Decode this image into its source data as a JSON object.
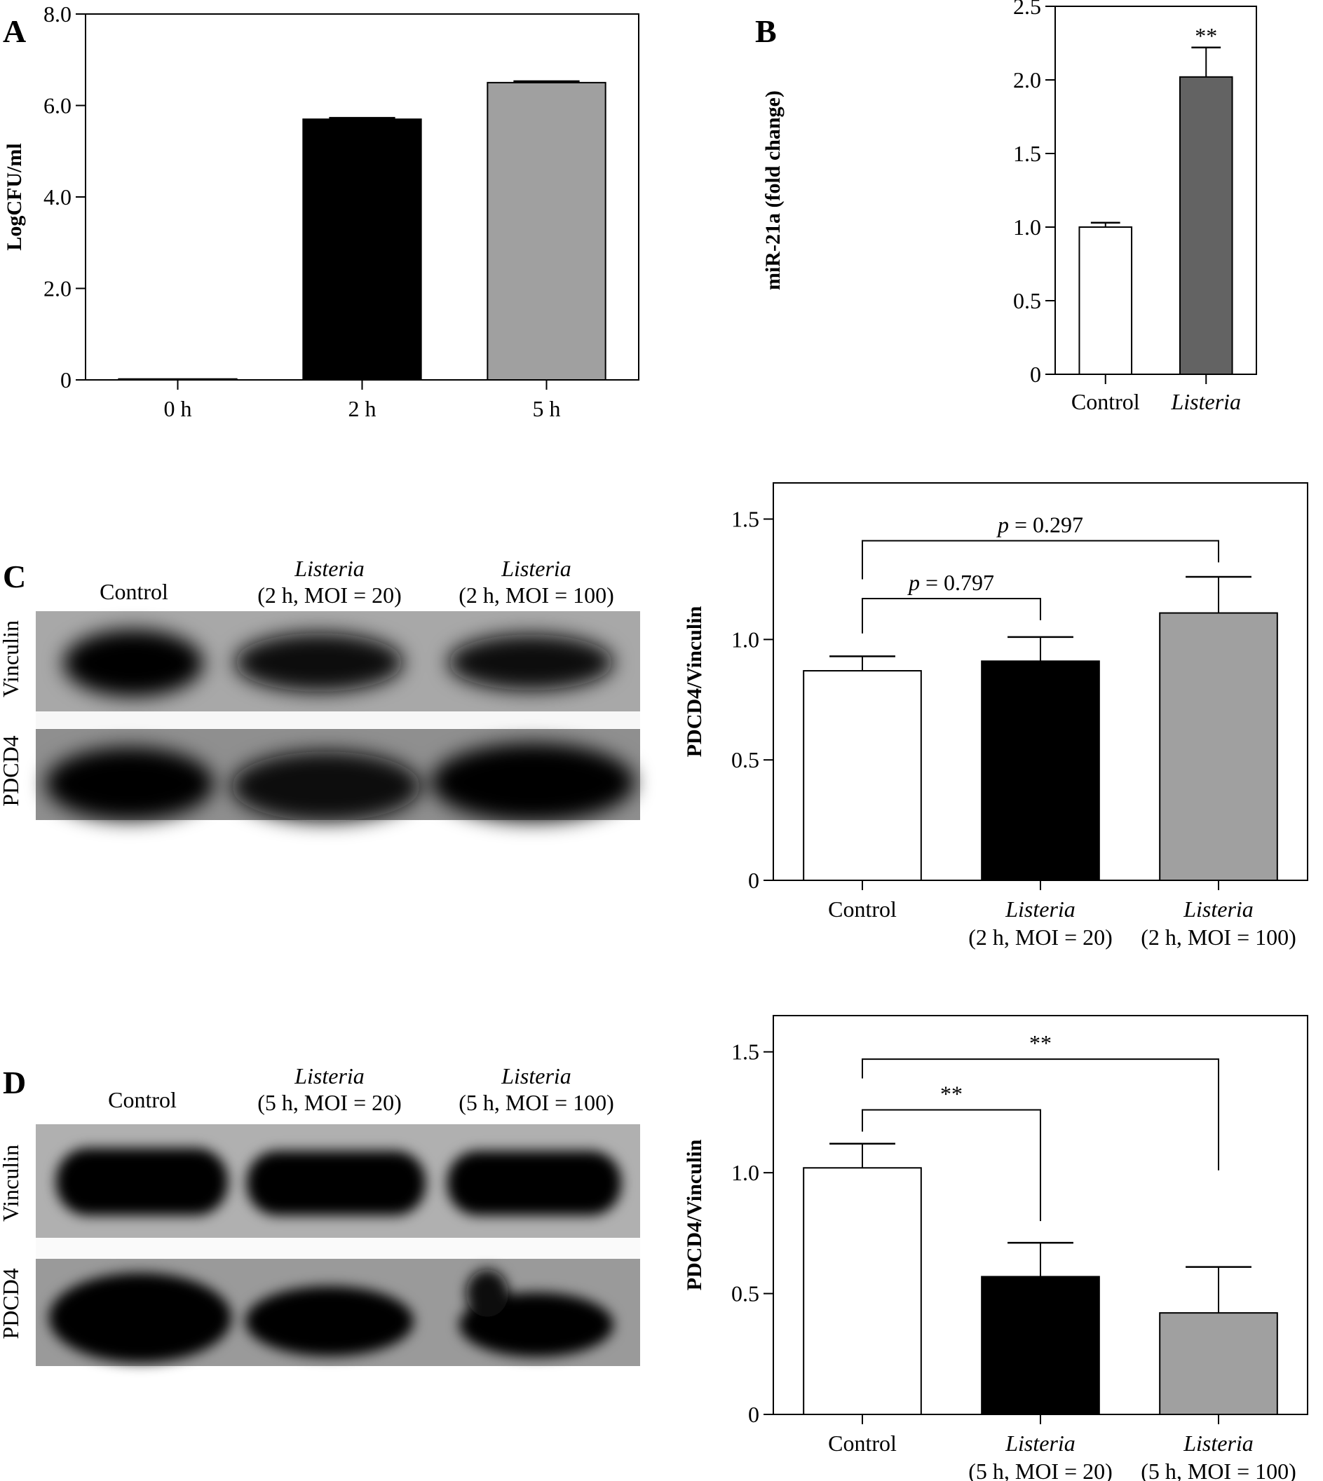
{
  "panels": {
    "A": "A",
    "B": "B",
    "C": "C",
    "D": "D"
  },
  "blots": {
    "C": {
      "lane_labels": [
        {
          "line1": "Control",
          "line2": ""
        },
        {
          "line1": "Listeria",
          "line2": "(2 h, MOI = 20)"
        },
        {
          "line1": "Listeria",
          "line2": "(2 h, MOI = 100)"
        }
      ],
      "row_labels": [
        "Vinculin",
        "PDCD4"
      ]
    },
    "D": {
      "lane_labels": [
        {
          "line1": "Control",
          "line2": ""
        },
        {
          "line1": "Listeria",
          "line2": "(5 h, MOI = 20)"
        },
        {
          "line1": "Listeria",
          "line2": "(5 h, MOI = 100)"
        }
      ],
      "row_labels": [
        "Vinculin",
        "PDCD4"
      ]
    }
  },
  "chart_data": [
    {
      "id": "A",
      "type": "bar",
      "title": "",
      "xlabel": "",
      "ylabel": "LogCFU/ml",
      "ylim": [
        0,
        8.0
      ],
      "yticks": [
        "0",
        "2.0",
        "4.0",
        "6.0",
        "8.0"
      ],
      "ytick_values": [
        0,
        2,
        4,
        6,
        8
      ],
      "categories": [
        {
          "l1": "0 h",
          "l2": ""
        },
        {
          "l1": "2 h",
          "l2": ""
        },
        {
          "l1": "5 h",
          "l2": ""
        }
      ],
      "values": [
        0.02,
        5.7,
        6.5
      ],
      "errors": [
        0.0,
        0.03,
        0.03
      ],
      "colors": [
        "#ffffff",
        "#000000",
        "#a0a0a0"
      ],
      "annotations": []
    },
    {
      "id": "B",
      "type": "bar",
      "title": "",
      "xlabel": "",
      "ylabel": "miR-21a (fold change)",
      "ylim": [
        0,
        2.5
      ],
      "yticks": [
        "0",
        "0.5",
        "1.0",
        "1.5",
        "2.0",
        "2.5"
      ],
      "ytick_values": [
        0,
        0.5,
        1.0,
        1.5,
        2.0,
        2.5
      ],
      "categories": [
        {
          "l1": "Control",
          "l2": "",
          "italic": false
        },
        {
          "l1": "Listeria",
          "l2": "",
          "italic": true
        }
      ],
      "values": [
        1.0,
        2.02
      ],
      "errors": [
        0.03,
        0.2
      ],
      "colors": [
        "#ffffff",
        "#636363"
      ],
      "annotations": [
        {
          "text": "**",
          "bar": 1
        }
      ]
    },
    {
      "id": "C",
      "type": "bar",
      "title": "",
      "xlabel": "",
      "ylabel": "PDCD4/Vinculin",
      "ylim": [
        0,
        1.65
      ],
      "yticks": [
        "0",
        "0.5",
        "1.0",
        "1.5"
      ],
      "ytick_values": [
        0,
        0.5,
        1.0,
        1.5
      ],
      "categories": [
        {
          "l1": "Control",
          "l2": "",
          "italic": false
        },
        {
          "l1": "Listeria",
          "l2": "(2 h, MOI = 20)",
          "italic": true
        },
        {
          "l1": "Listeria",
          "l2": "(2 h, MOI = 100)",
          "italic": true
        }
      ],
      "values": [
        0.87,
        0.91,
        1.11
      ],
      "errors": [
        0.06,
        0.1,
        0.15
      ],
      "colors": [
        "#ffffff",
        "#000000",
        "#a0a0a0"
      ],
      "brackets": [
        {
          "from": 0,
          "to": 1,
          "y": 1.17,
          "left_drop": 1.025,
          "right_drop": 1.08,
          "label_prefix": "p",
          "label_value": " = 0.797"
        },
        {
          "from": 0,
          "to": 2,
          "y": 1.41,
          "left_drop": 1.25,
          "right_drop": 1.32,
          "label_prefix": "p",
          "label_value": " = 0.297"
        }
      ]
    },
    {
      "id": "D",
      "type": "bar",
      "title": "",
      "xlabel": "",
      "ylabel": "PDCD4/Vinculin",
      "ylim": [
        0,
        1.65
      ],
      "yticks": [
        "0",
        "0.5",
        "1.0",
        "1.5"
      ],
      "ytick_values": [
        0,
        0.5,
        1.0,
        1.5
      ],
      "categories": [
        {
          "l1": "Control",
          "l2": "",
          "italic": false
        },
        {
          "l1": "Listeria",
          "l2": "(5 h, MOI = 20)",
          "italic": true
        },
        {
          "l1": "Listeria",
          "l2": "(5 h, MOI = 100)",
          "italic": true
        }
      ],
      "values": [
        1.02,
        0.57,
        0.42
      ],
      "errors": [
        0.1,
        0.14,
        0.19
      ],
      "colors": [
        "#ffffff",
        "#000000",
        "#a0a0a0"
      ],
      "brackets": [
        {
          "from": 0,
          "to": 1,
          "y": 1.26,
          "left_drop": 1.17,
          "right_drop": 0.8,
          "label_prefix": "",
          "label_value": "**"
        },
        {
          "from": 0,
          "to": 2,
          "y": 1.47,
          "left_drop": 1.39,
          "right_drop": 1.01,
          "label_prefix": "",
          "label_value": "**"
        }
      ]
    }
  ]
}
